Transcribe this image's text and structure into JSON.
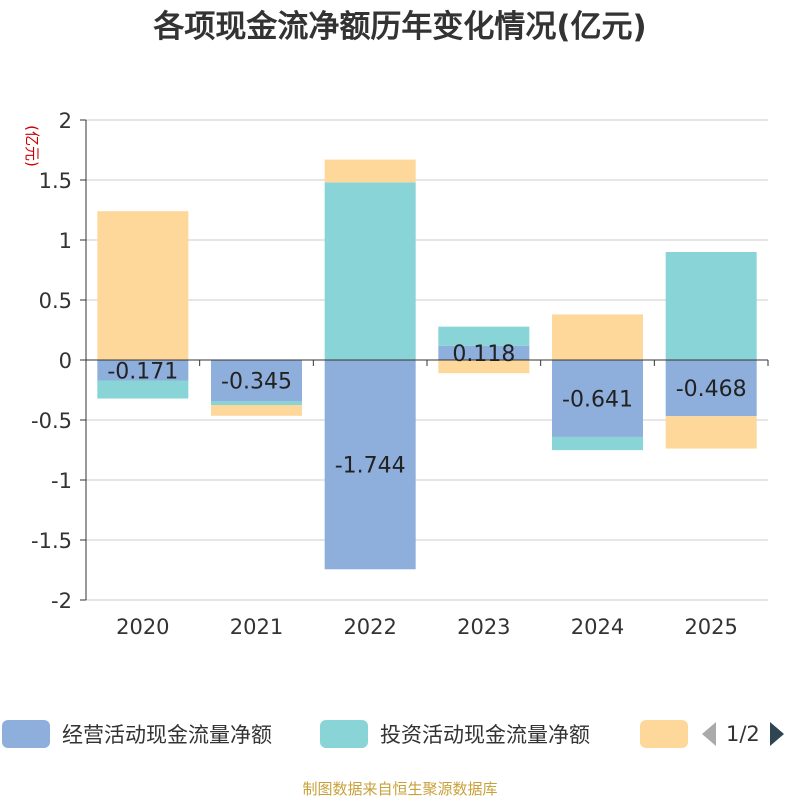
{
  "chart_data": {
    "type": "bar",
    "stacked": true,
    "title": "各项现金流净额历年变化情况(亿元)",
    "ylabel": "(亿元)",
    "xlabel": "",
    "ylim": [
      -2,
      2
    ],
    "yticks": [
      2,
      1.5,
      1,
      0.5,
      0,
      -0.5,
      -1,
      -1.5,
      -2
    ],
    "ytick_labels": [
      "2",
      "1.5",
      "1",
      "0.5",
      "0",
      "-0.5",
      "-1",
      "-1.5",
      "-2"
    ],
    "categories": [
      "2020",
      "2021",
      "2022",
      "2023",
      "2024",
      "2025"
    ],
    "series": [
      {
        "name": "经营活动现金流量净额",
        "color": "#8eaedb",
        "values": [
          -0.171,
          -0.345,
          -1.744,
          0.118,
          -0.641,
          -0.468
        ],
        "data_labels": [
          "-0.171",
          "-0.345",
          "-1.744",
          "0.118",
          "-0.641",
          "-0.468"
        ]
      },
      {
        "name": "投资活动现金流量净额",
        "color": "#88d4d6",
        "values": [
          -0.15,
          -0.03,
          1.48,
          0.16,
          -0.11,
          0.9
        ]
      },
      {
        "name": "",
        "color": "#fdd89a",
        "values": [
          1.24,
          -0.09,
          0.19,
          -0.11,
          0.38,
          -0.27
        ]
      }
    ],
    "legend_position": "bottom"
  },
  "legend": {
    "page_indicator": "1/2"
  },
  "source": "制图数据来自恒生聚源数据库"
}
